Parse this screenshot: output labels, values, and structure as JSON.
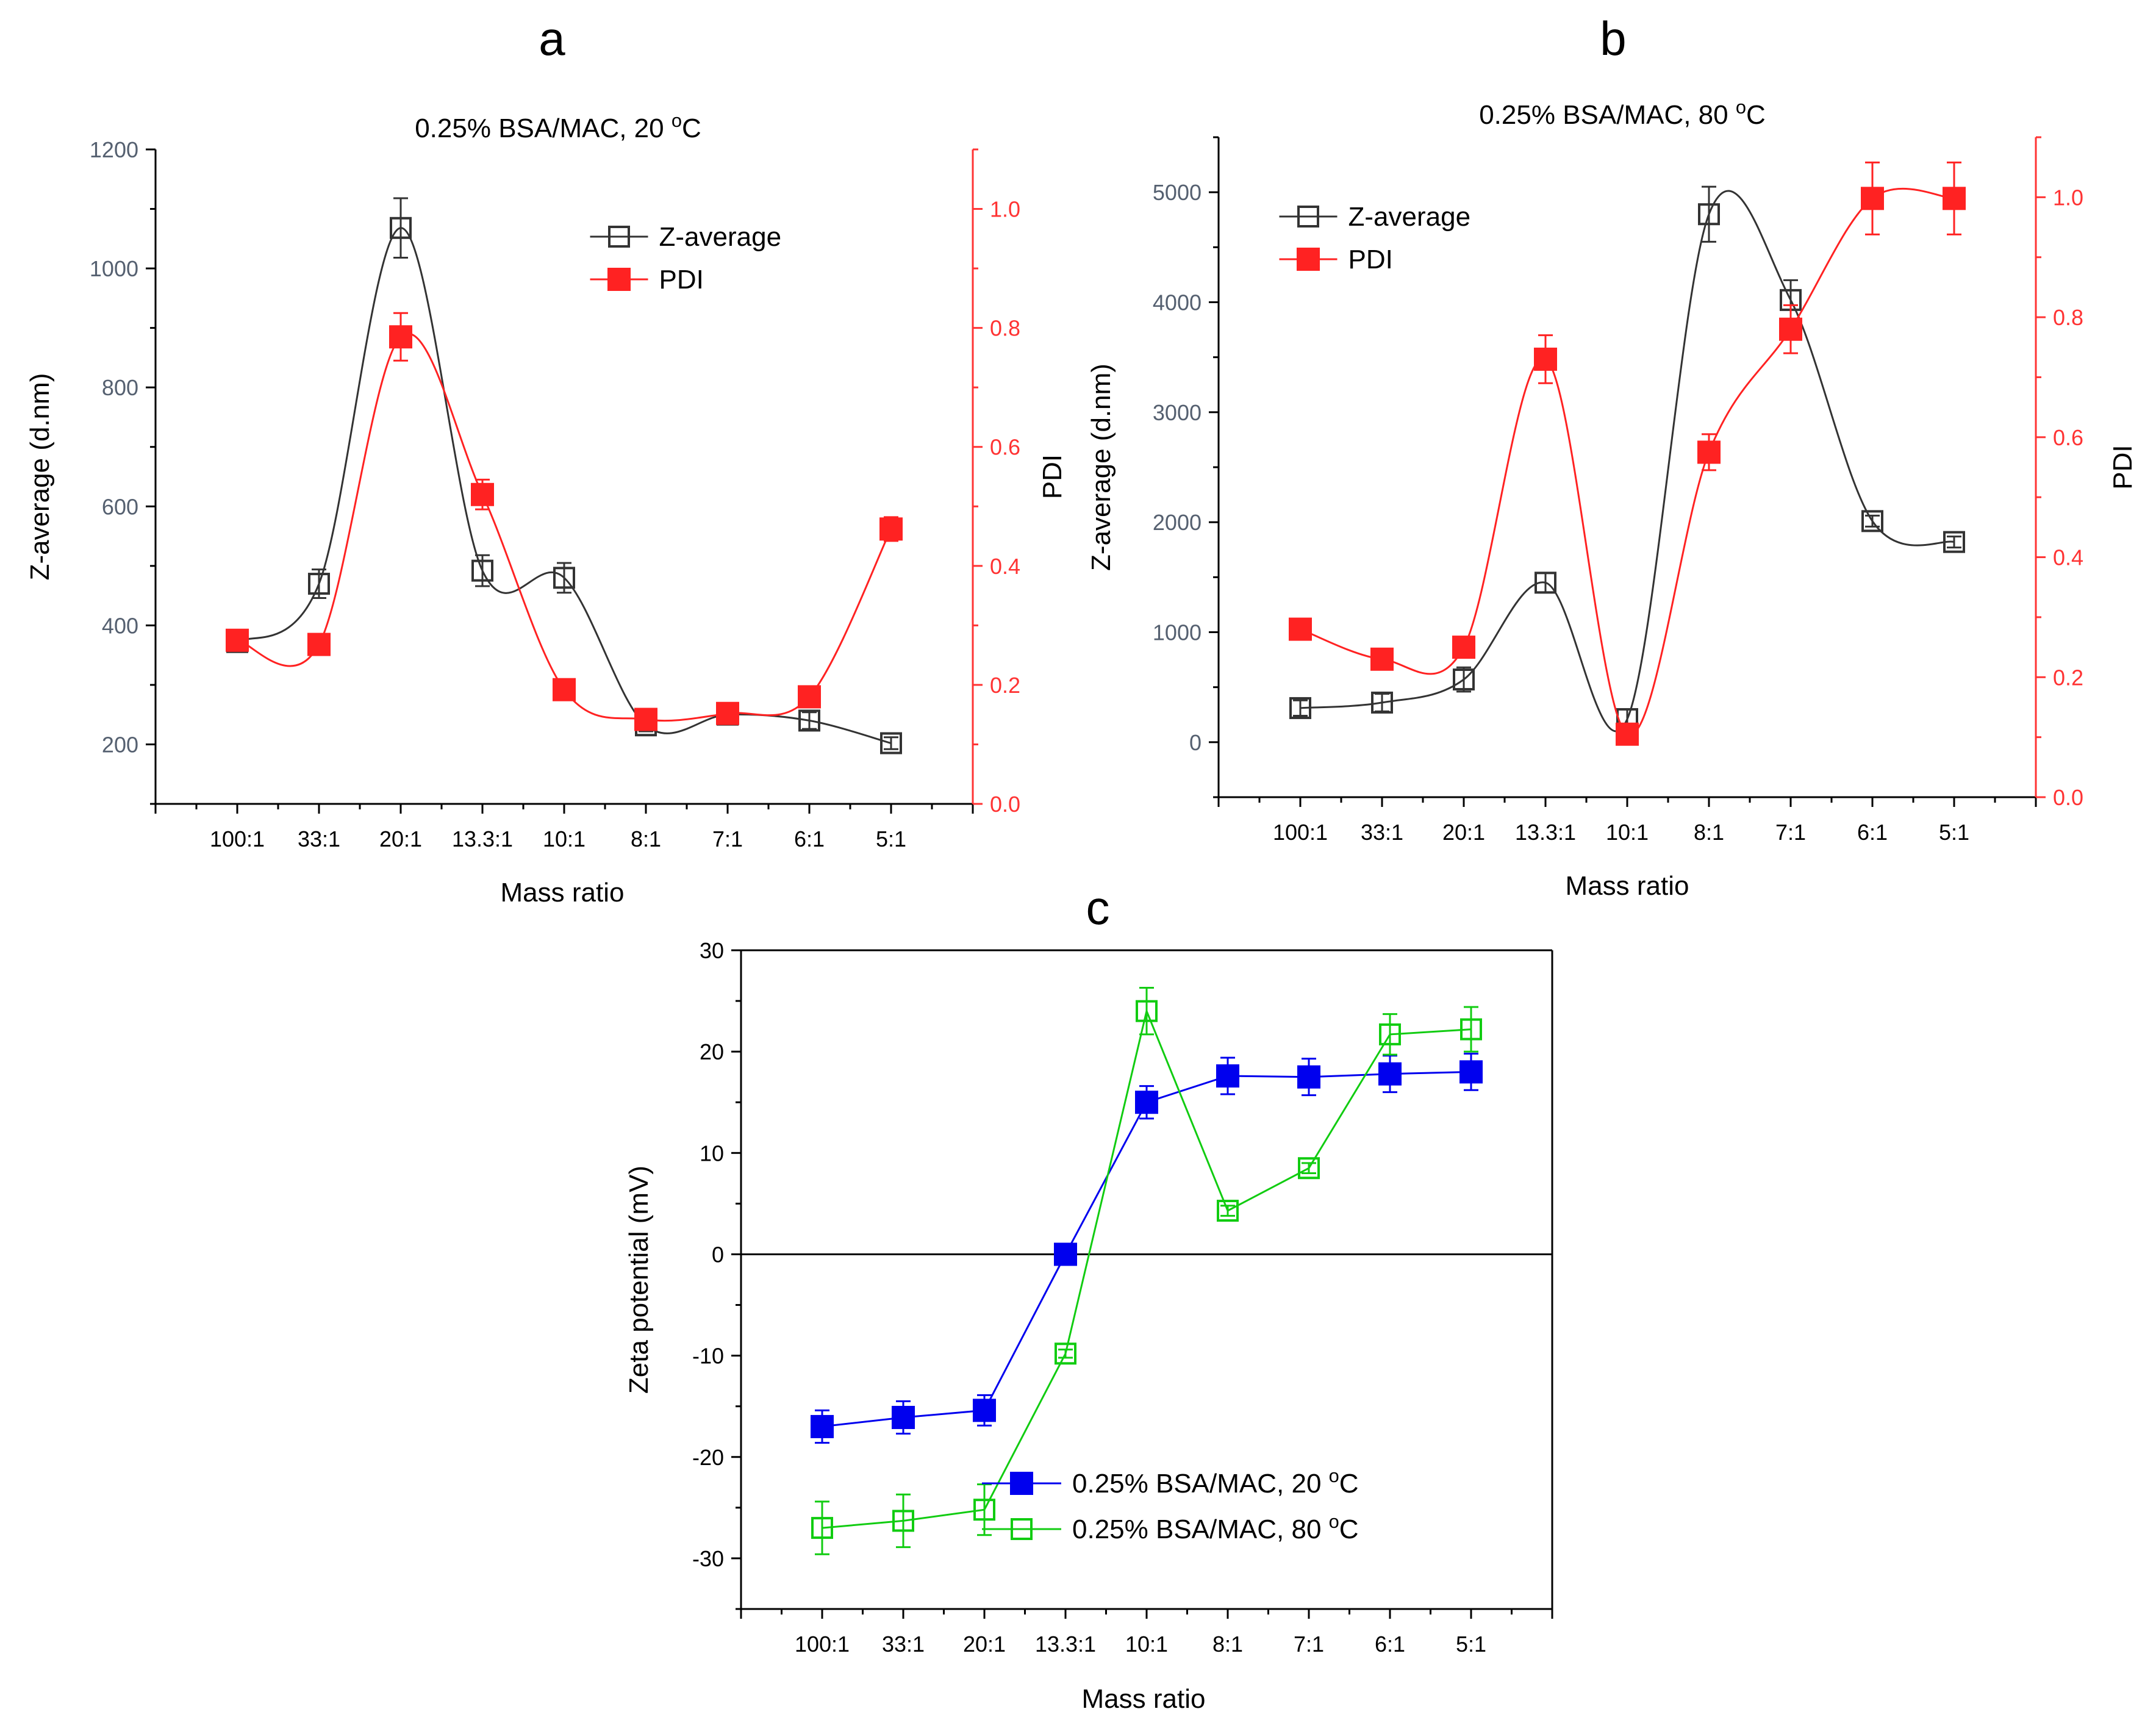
{
  "colors": {
    "axis": "#000000",
    "z": "#333333",
    "pdi": "#ff2222",
    "pdi_axis": "#ff3333",
    "z_axis_text": "#556070",
    "blue": "#0000ee",
    "green": "#11cc11"
  },
  "chart_data": [
    {
      "panel_letter": "a",
      "type": "line",
      "title_prefix": "0.25% BSA/MAC, 20 ",
      "title_sup": "o",
      "title_suffix": "C",
      "xlabel": "Mass ratio",
      "ylabel": "Z-average (d.nm)",
      "y2label": "PDI",
      "categories": [
        "100:1",
        "33:1",
        "20:1",
        "13.3:1",
        "10:1",
        "8:1",
        "7:1",
        "6:1",
        "5:1"
      ],
      "xlim": [
        -1,
        9
      ],
      "ylim": [
        100,
        1200
      ],
      "yticks": [
        200,
        400,
        600,
        800,
        1000,
        1200
      ],
      "y2lim": [
        0.0,
        1.1
      ],
      "y2ticks": [
        "0.0",
        "0.2",
        "0.4",
        "0.6",
        "0.8",
        "1.0"
      ],
      "series": [
        {
          "name": "Z-average",
          "axis": "left",
          "marker": "open-square",
          "color": "#333333",
          "values": [
            372,
            470,
            1068,
            492,
            480,
            232,
            250,
            240,
            202
          ],
          "errors": [
            12,
            24,
            50,
            26,
            25,
            10,
            12,
            14,
            10
          ]
        },
        {
          "name": "PDI",
          "axis": "right",
          "marker": "filled-square",
          "color": "#ff2222",
          "values": [
            0.275,
            0.268,
            0.785,
            0.52,
            0.192,
            0.142,
            0.152,
            0.18,
            0.462
          ],
          "errors": [
            0.01,
            0.01,
            0.04,
            0.025,
            0.01,
            0.01,
            0.01,
            0.01,
            0.02
          ]
        }
      ]
    },
    {
      "panel_letter": "b",
      "type": "line",
      "title_prefix": "0.25% BSA/MAC, 80 ",
      "title_sup": "o",
      "title_suffix": "C",
      "xlabel": "Mass ratio",
      "ylabel": "Z-average (d.nm)",
      "y2label": "PDI",
      "categories": [
        "100:1",
        "33:1",
        "20:1",
        "13.3:1",
        "10:1",
        "8:1",
        "7:1",
        "6:1",
        "5:1"
      ],
      "xlim": [
        -1,
        9
      ],
      "ylim": [
        -500,
        5500
      ],
      "yticks": [
        0,
        1000,
        2000,
        3000,
        4000,
        5000
      ],
      "y2lim": [
        0.0,
        1.1
      ],
      "y2ticks": [
        "0.0",
        "0.2",
        "0.4",
        "0.6",
        "0.8",
        "1.0"
      ],
      "series": [
        {
          "name": "Z-average",
          "axis": "left",
          "marker": "open-square",
          "color": "#333333",
          "values": [
            310,
            360,
            570,
            1450,
            210,
            4800,
            4020,
            2010,
            1820
          ],
          "errors": [
            70,
            80,
            110,
            90,
            90,
            250,
            180,
            50,
            50
          ]
        },
        {
          "name": "PDI",
          "axis": "right",
          "marker": "filled-square",
          "color": "#ff2222",
          "values": [
            0.28,
            0.23,
            0.25,
            0.73,
            0.105,
            0.575,
            0.78,
            0.998,
            0.998
          ],
          "errors": [
            0.01,
            0.01,
            0.01,
            0.04,
            0.01,
            0.03,
            0.04,
            0.06,
            0.06
          ]
        }
      ]
    },
    {
      "panel_letter": "c",
      "type": "line",
      "title_prefix": "",
      "title_sup": "",
      "title_suffix": "",
      "xlabel": "Mass ratio",
      "ylabel": "Zeta potential (mV)",
      "categories": [
        "100:1",
        "33:1",
        "20:1",
        "13.3:1",
        "10:1",
        "8:1",
        "7:1",
        "6:1",
        "5:1"
      ],
      "xlim": [
        -1,
        9
      ],
      "ylim": [
        -35,
        30
      ],
      "yticks": [
        -30,
        -20,
        -10,
        0,
        10,
        20,
        30
      ],
      "zero_line": true,
      "series": [
        {
          "name": "0.25% BSA/MAC, 20",
          "name_sup": "o",
          "name_suffix": "C",
          "marker": "filled-square",
          "color": "#0000ee",
          "values": [
            -17.0,
            -16.1,
            -15.4,
            0.0,
            15.0,
            17.6,
            17.5,
            17.8,
            18.0
          ],
          "errors": [
            1.6,
            1.6,
            1.5,
            0.3,
            1.6,
            1.8,
            1.8,
            1.8,
            1.8
          ]
        },
        {
          "name": "0.25% BSA/MAC, 80",
          "name_sup": "o",
          "name_suffix": "C",
          "marker": "open-square",
          "color": "#11cc11",
          "values": [
            -27.0,
            -26.3,
            -25.2,
            -9.8,
            24.0,
            4.3,
            8.5,
            21.7,
            22.2
          ],
          "errors": [
            2.6,
            2.6,
            2.5,
            0.4,
            2.3,
            0.5,
            0.5,
            2.0,
            2.2
          ]
        }
      ]
    }
  ]
}
